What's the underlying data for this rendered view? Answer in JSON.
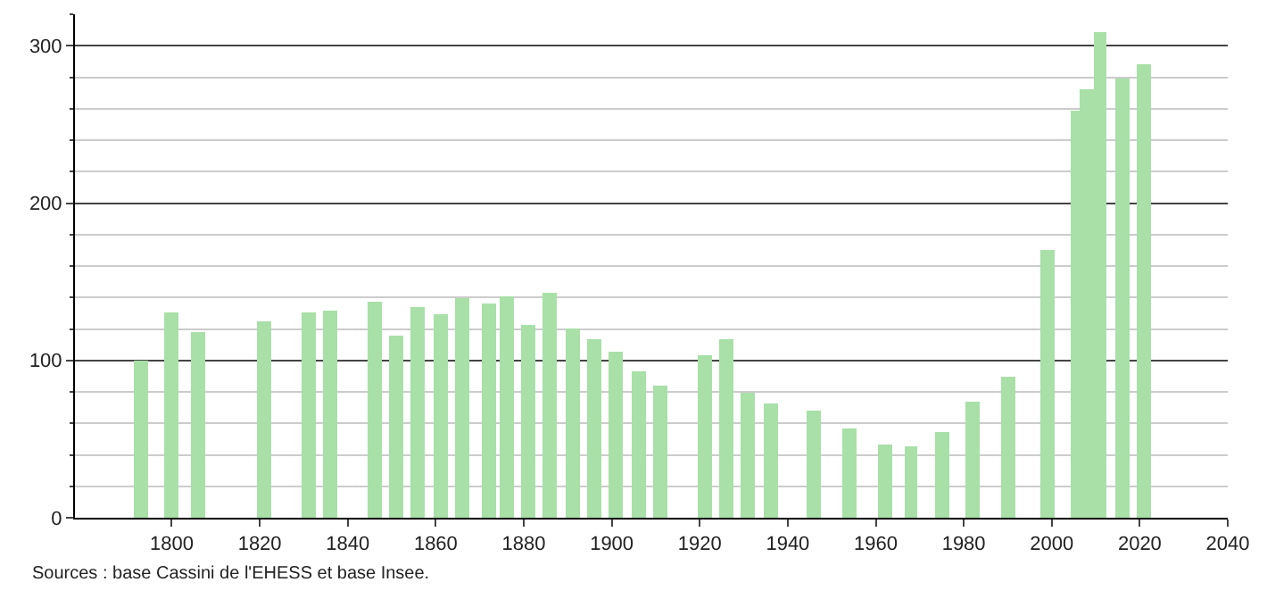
{
  "chart_data": {
    "type": "bar",
    "color": "#a8e0a8",
    "x": [
      1793,
      1800,
      1806,
      1821,
      1831,
      1836,
      1846,
      1851,
      1856,
      1861,
      1866,
      1872,
      1876,
      1881,
      1886,
      1891,
      1896,
      1901,
      1906,
      1911,
      1921,
      1926,
      1931,
      1936,
      1946,
      1954,
      1962,
      1968,
      1975,
      1982,
      1990,
      1999,
      2006,
      2008,
      2011,
      2016,
      2021
    ],
    "values": [
      100,
      130,
      118,
      125,
      130,
      132,
      137,
      116,
      134,
      129,
      140,
      136,
      141,
      123,
      143,
      120,
      114,
      106,
      93,
      84,
      103,
      113,
      79,
      73,
      68,
      57,
      47,
      45,
      54,
      74,
      90,
      170,
      259,
      272,
      309,
      279,
      288
    ],
    "xlim": [
      1778,
      2040
    ],
    "xticks": [
      1800,
      1820,
      1840,
      1860,
      1880,
      1900,
      1920,
      1940,
      1960,
      1980,
      2000,
      2020,
      2040
    ],
    "ylim": [
      0,
      320
    ],
    "yticks": [
      0,
      100,
      200,
      300
    ],
    "grid": "y",
    "annotations": [
      "Sources : base Cassini de l'EHESS et base Insee."
    ]
  }
}
